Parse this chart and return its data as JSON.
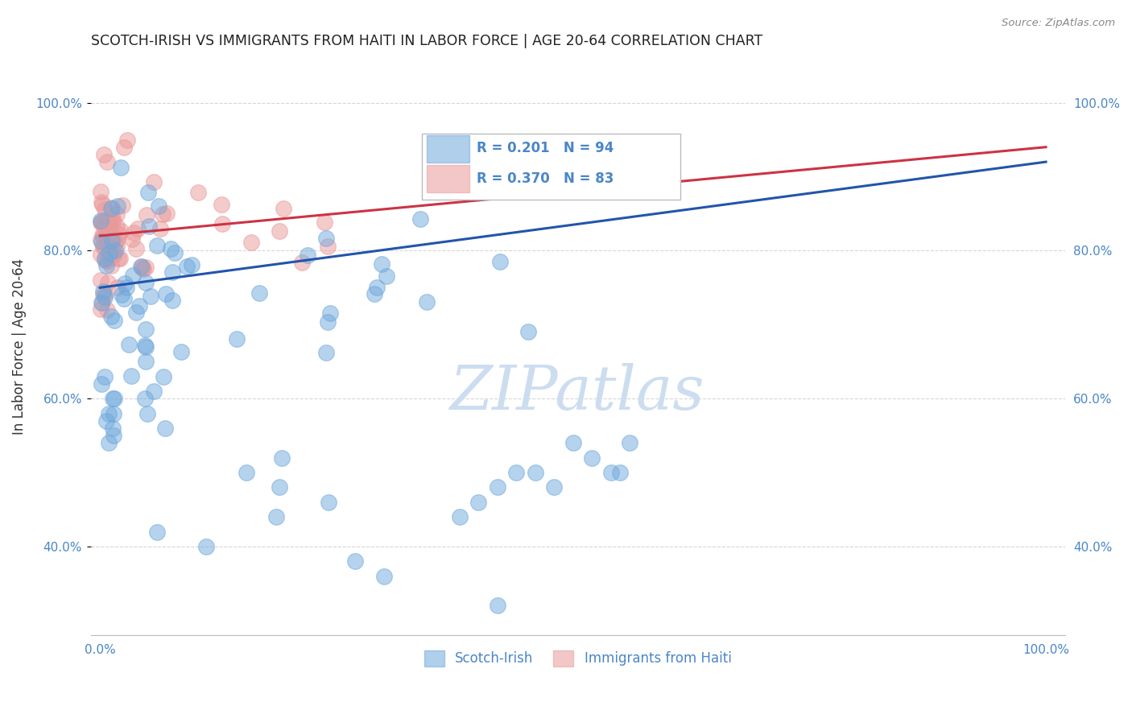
{
  "title": "SCOTCH-IRISH VS IMMIGRANTS FROM HAITI IN LABOR FORCE | AGE 20-64 CORRELATION CHART",
  "source": "Source: ZipAtlas.com",
  "ylabel": "In Labor Force | Age 20-64",
  "xlim": [
    -0.01,
    1.02
  ],
  "ylim": [
    0.28,
    1.06
  ],
  "yticks": [
    0.4,
    0.6,
    0.8,
    1.0
  ],
  "ytick_labels": [
    "40.0%",
    "60.0%",
    "80.0%",
    "100.0%"
  ],
  "xtick_labels_show": [
    "0.0%",
    "100.0%"
  ],
  "legend_text_blue": "R = 0.201   N = 94",
  "legend_text_pink": "R = 0.370   N = 83",
  "blue_color": "#6fa8dc",
  "pink_color": "#ea9999",
  "trend_blue": "#2255aa",
  "trend_pink": "#cc3344",
  "watermark_color": "#ccddf0",
  "background_color": "#ffffff",
  "grid_color": "#cccccc",
  "blue_label": "Scotch-Irish",
  "pink_label": "Immigrants from Haiti",
  "blue_trend_x": [
    0.0,
    1.0
  ],
  "blue_trend_y": [
    0.75,
    0.92
  ],
  "pink_trend_x": [
    0.0,
    1.0
  ],
  "pink_trend_y": [
    0.82,
    0.94
  ],
  "tick_color": "#4a86c8",
  "title_color": "#222222",
  "source_color": "#888888"
}
